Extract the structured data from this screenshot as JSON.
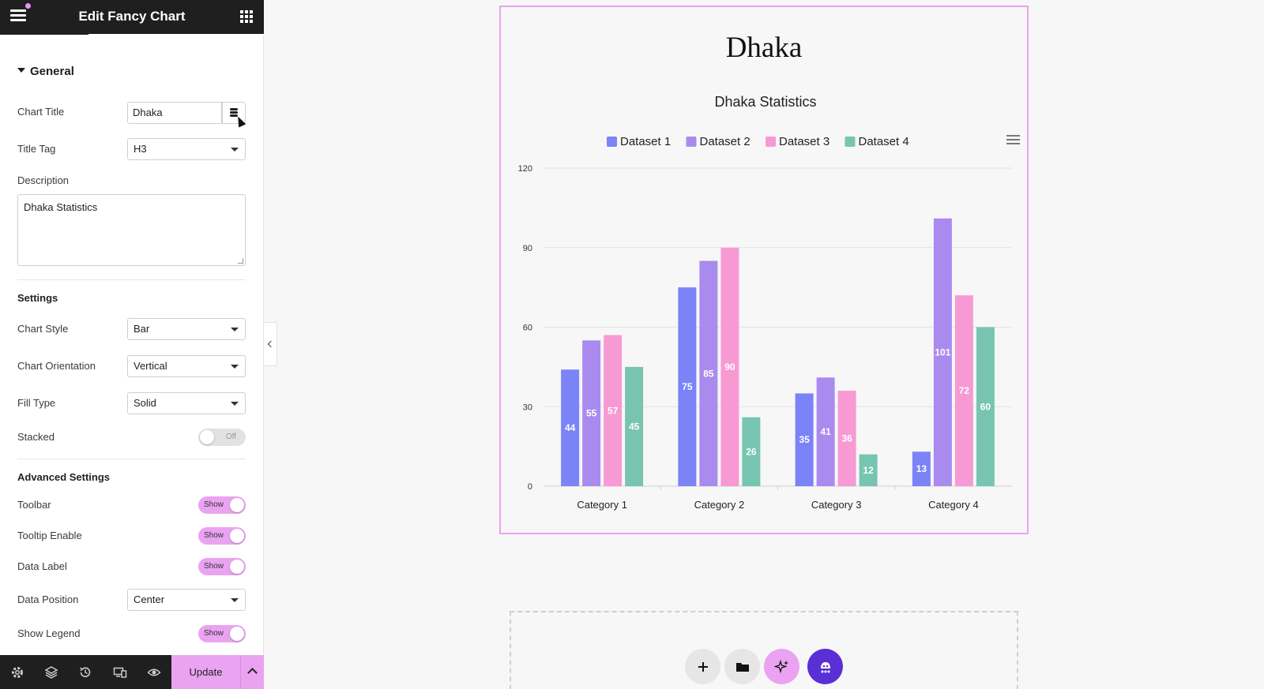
{
  "sidebar": {
    "header_title": "Edit Fancy Chart",
    "section_general": "General",
    "chart_title_label": "Chart Title",
    "chart_title_value": "Dhaka",
    "title_tag_label": "Title Tag",
    "title_tag_value": "H3",
    "description_label": "Description",
    "description_value": "Dhaka Statistics",
    "settings_head": "Settings",
    "chart_style_label": "Chart Style",
    "chart_style_value": "Bar",
    "chart_orientation_label": "Chart Orientation",
    "chart_orientation_value": "Vertical",
    "fill_type_label": "Fill Type",
    "fill_type_value": "Solid",
    "stacked_label": "Stacked",
    "stacked_state": "Off",
    "advanced_head": "Advanced Settings",
    "toolbar_label": "Toolbar",
    "toolbar_state": "Show",
    "tooltip_label": "Tooltip Enable",
    "tooltip_state": "Show",
    "data_label_label": "Data Label",
    "data_label_state": "Show",
    "data_position_label": "Data Position",
    "data_position_value": "Center",
    "show_legend_label": "Show Legend",
    "show_legend_state": "Show"
  },
  "footer": {
    "update_label": "Update",
    "icons": [
      "gear-icon",
      "layers-icon",
      "history-icon",
      "responsive-icon",
      "eye-icon"
    ]
  },
  "canvas": {
    "widget_title": "Dhaka",
    "fab_icons": [
      "plus-icon",
      "folder-icon",
      "sparkle-icon",
      "assistant-icon"
    ]
  },
  "colors": {
    "accent": "#eaa3f0",
    "dataset1": "#7b83f7",
    "dataset2": "#a98bef",
    "dataset3": "#f79ad3",
    "dataset4": "#77c5b0"
  },
  "chart_data": {
    "type": "bar",
    "title": "Dhaka Statistics",
    "categories": [
      "Category 1",
      "Category 2",
      "Category 3",
      "Category 4"
    ],
    "series": [
      {
        "name": "Dataset 1",
        "values": [
          44,
          75,
          35,
          13
        ]
      },
      {
        "name": "Dataset 2",
        "values": [
          55,
          85,
          41,
          101
        ]
      },
      {
        "name": "Dataset 3",
        "values": [
          57,
          90,
          36,
          72
        ]
      },
      {
        "name": "Dataset 4",
        "values": [
          45,
          26,
          12,
          60
        ]
      }
    ],
    "yticks": [
      0,
      30,
      60,
      90,
      120
    ],
    "ylim": [
      0,
      120
    ],
    "legend_position": "top",
    "grid": true,
    "data_labels": true
  }
}
